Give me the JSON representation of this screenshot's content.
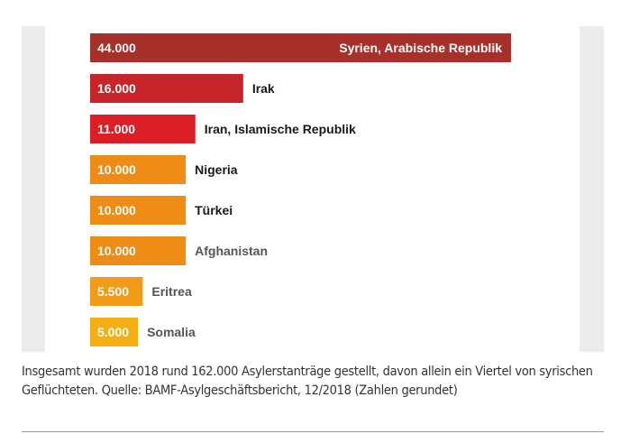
{
  "chart_data": {
    "type": "bar",
    "orientation": "horizontal",
    "categories": [
      "Syrien, Arabische Republik",
      "Irak",
      "Iran, Islamische Republik",
      "Nigeria",
      "Türkei",
      "Afghanistan",
      "Eritrea",
      "Somalia"
    ],
    "values": [
      44000,
      16000,
      11000,
      10000,
      10000,
      10000,
      5500,
      5000
    ],
    "value_labels": [
      "44.000",
      "16.000",
      "11.000",
      "10.000",
      "10.000",
      "10.000",
      "5.500",
      "5.000"
    ],
    "colors": [
      "#a8302b",
      "#c8252a",
      "#dc1f26",
      "#ee8c15",
      "#ee8c15",
      "#ee8c15",
      "#f19b18",
      "#f5af14"
    ],
    "label_colors": [
      "#ffffff",
      "#1a1a1a",
      "#1a1a1a",
      "#1a1a1a",
      "#1a1a1a",
      "#555555",
      "#555555",
      "#555555"
    ],
    "title": "",
    "xlabel": "",
    "ylabel": "",
    "grid": false,
    "legend": "none"
  },
  "caption": "Insgesamt wurden 2018 rund 162.000 Asylerstanträge gestellt, davon allein ein Viertel von syrischen Geflüchteten. Quelle: BAMF-Asylgeschäftsbericht, 12/2018 (Zahlen gerundet)"
}
